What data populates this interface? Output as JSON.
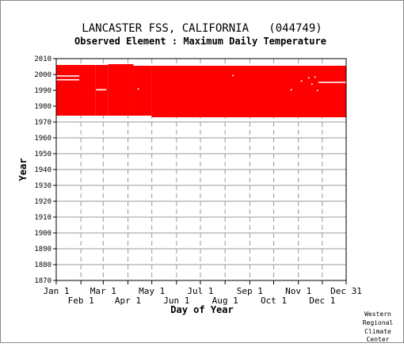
{
  "chart_data": {
    "type": "heatmap",
    "title": "LANCASTER FSS, CALIFORNIA   (044749)",
    "subtitle": "Observed Element : Maximum Daily Temperature",
    "xlabel": "Day of Year",
    "ylabel": "Year",
    "xlim": [
      1,
      365
    ],
    "ylim": [
      1870,
      2010
    ],
    "grid": true,
    "colors": {
      "data": "#ff0000",
      "grid": "#999999",
      "frame": "#000000",
      "background": "#ffffff"
    },
    "yticks": [
      1870,
      1880,
      1890,
      1900,
      1910,
      1920,
      1930,
      1940,
      1950,
      1960,
      1970,
      1980,
      1990,
      2000,
      2010
    ],
    "xticks_top": [
      {
        "label": "Jan 1",
        "day": 1
      },
      {
        "label": "Mar 1",
        "day": 60
      },
      {
        "label": "May 1",
        "day": 121
      },
      {
        "label": "Jul 1",
        "day": 182
      },
      {
        "label": "Sep 1",
        "day": 244
      },
      {
        "label": "Nov 1",
        "day": 305
      },
      {
        "label": "Dec 31",
        "day": 365
      }
    ],
    "xticks_bottom": [
      {
        "label": "Feb 1",
        "day": 32
      },
      {
        "label": "Apr 1",
        "day": 91
      },
      {
        "label": "Jun 1",
        "day": 152
      },
      {
        "label": "Aug 1",
        "day": 213
      },
      {
        "label": "Oct 1",
        "day": 274
      },
      {
        "label": "Dec 1",
        "day": 335
      }
    ],
    "data_blocks": [
      {
        "day_start": 1,
        "day_end": 50,
        "year_start": 1974,
        "year_end": 2006
      },
      {
        "day_start": 50,
        "day_end": 66,
        "year_start": 1974,
        "year_end": 2006
      },
      {
        "day_start": 66,
        "day_end": 98,
        "year_start": 1974,
        "year_end": 2006.5
      },
      {
        "day_start": 98,
        "day_end": 121,
        "year_start": 1974,
        "year_end": 2005.5
      },
      {
        "day_start": 121,
        "day_end": 365,
        "year_start": 1973,
        "year_end": 2005.5
      }
    ],
    "missing_marks": [
      {
        "day_start": 1,
        "day_end": 30,
        "year": 1999.2
      },
      {
        "day_start": 1,
        "day_end": 30,
        "year": 1996.8
      },
      {
        "day_start": 51,
        "day_end": 64,
        "year": 1990.5
      },
      {
        "day_start": 330,
        "day_end": 365,
        "year": 1995.2
      },
      {
        "day_start": 103,
        "day_end": 105,
        "year": 1991
      },
      {
        "day_start": 222,
        "day_end": 224,
        "year": 1999.5
      },
      {
        "day_start": 295,
        "day_end": 297,
        "year": 1990.5
      },
      {
        "day_start": 308,
        "day_end": 310,
        "year": 1996
      },
      {
        "day_start": 317,
        "day_end": 319,
        "year": 1998
      },
      {
        "day_start": 321,
        "day_end": 323,
        "year": 1994
      },
      {
        "day_start": 325,
        "day_end": 327,
        "year": 1998.5
      },
      {
        "day_start": 328,
        "day_end": 330,
        "year": 1990
      }
    ]
  },
  "credit": [
    "Western",
    "Regional",
    "Climate",
    "Center"
  ]
}
